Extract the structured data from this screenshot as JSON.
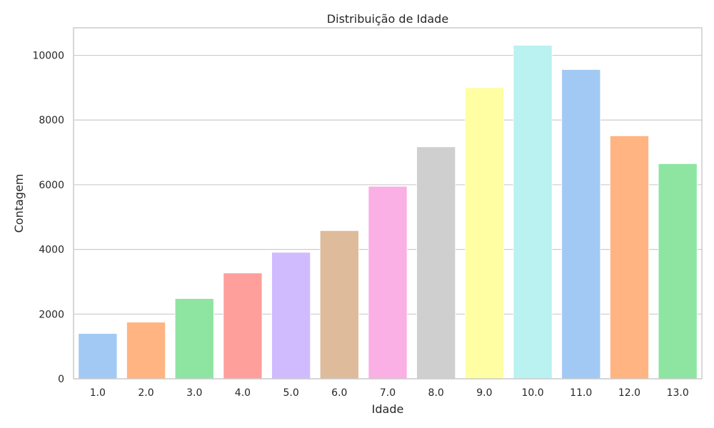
{
  "chart_data": {
    "type": "bar",
    "title": "Distribuição de Idade",
    "xlabel": "Idade",
    "ylabel": "Contagem",
    "categories": [
      "1.0",
      "2.0",
      "3.0",
      "4.0",
      "5.0",
      "6.0",
      "7.0",
      "8.0",
      "9.0",
      "10.0",
      "11.0",
      "12.0",
      "13.0"
    ],
    "values": [
      1400,
      1750,
      2480,
      3270,
      3910,
      4580,
      5950,
      7170,
      9000,
      10310,
      9560,
      7510,
      6650
    ],
    "ylim": [
      0,
      10850
    ],
    "yticks": [
      0,
      2000,
      4000,
      6000,
      8000,
      10000
    ],
    "ytick_labels": [
      "0",
      "2000",
      "4000",
      "6000",
      "8000",
      "10000"
    ],
    "grid": "horizontal",
    "colors": [
      "#a1c9f4",
      "#ffb482",
      "#8de5a1",
      "#ff9f9b",
      "#d0bbff",
      "#debb9b",
      "#fab0e4",
      "#cfcfcf",
      "#fffea3",
      "#b9f2f0",
      "#a1c9f4",
      "#ffb482",
      "#8de5a1"
    ],
    "style": {
      "grid_color": "#cccccc",
      "frame_color": "#cccccc",
      "text_color": "#262626"
    }
  }
}
